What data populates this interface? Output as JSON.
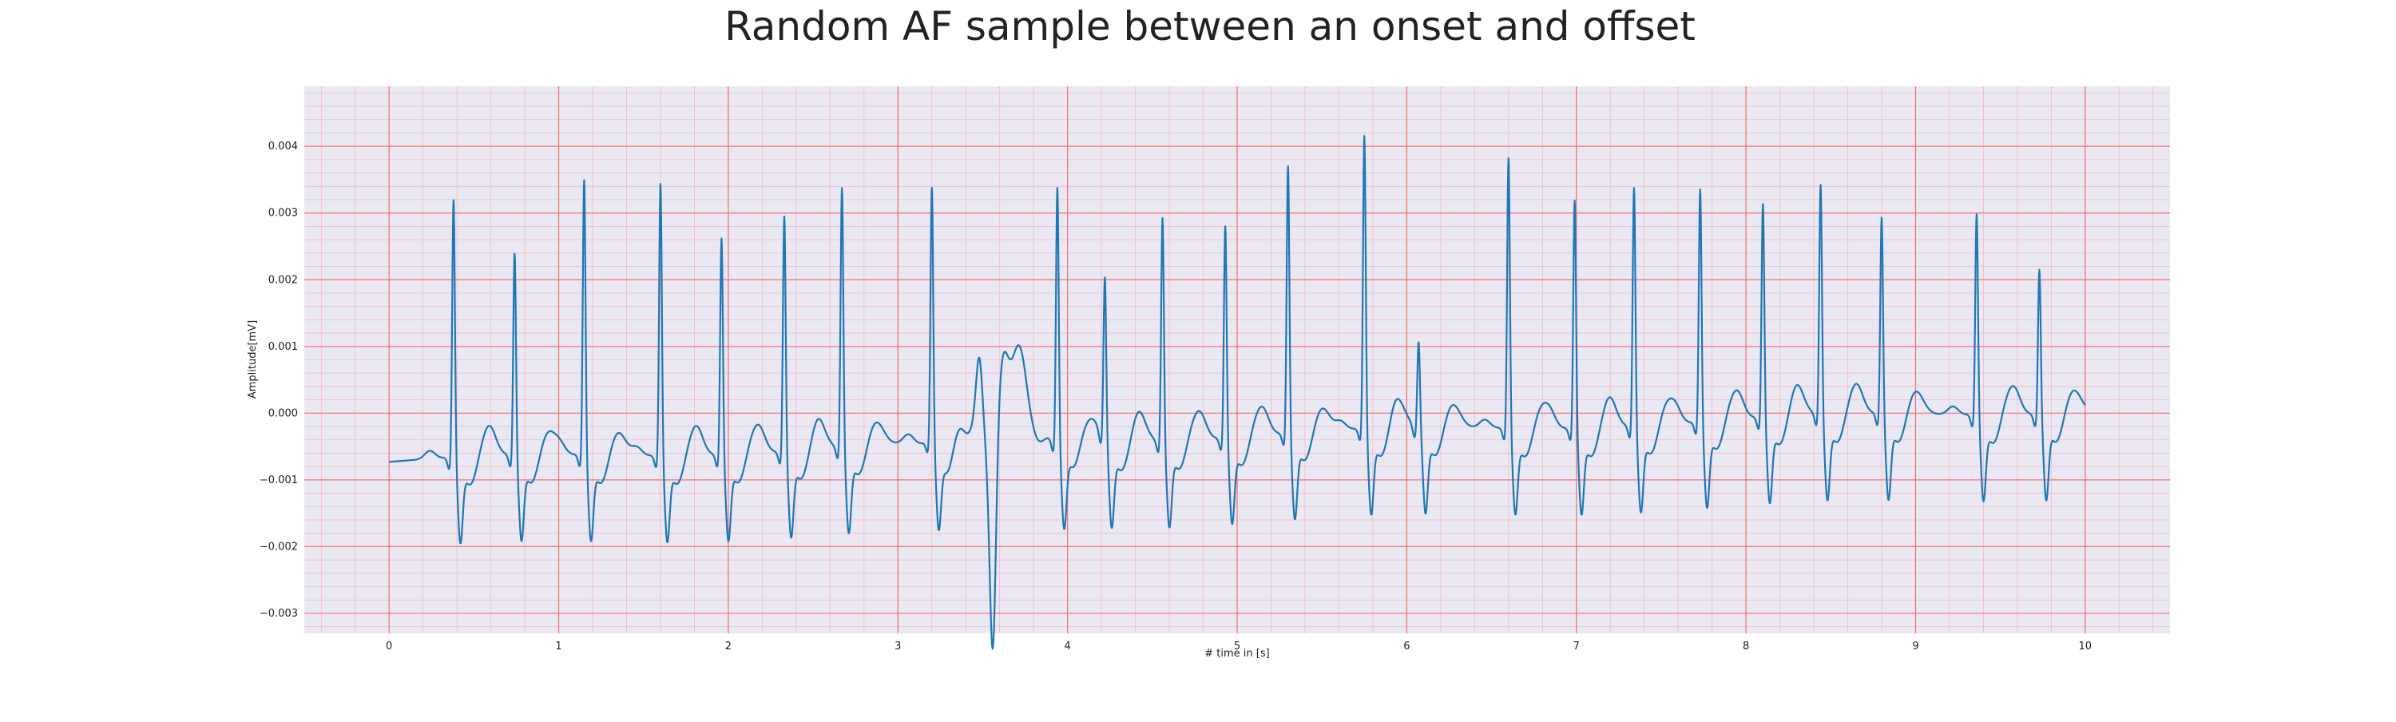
{
  "chart_data": {
    "type": "line",
    "title": "Random AF sample between an onset and offset",
    "xlabel": "# time in [s]",
    "ylabel": "Amplitude[mV]",
    "xlim": [
      -0.5,
      10.5
    ],
    "ylim": [
      -0.0033,
      0.0049
    ],
    "xticks": [
      0,
      1,
      2,
      3,
      4,
      5,
      6,
      7,
      8,
      9,
      10
    ],
    "yticks": [
      -0.003,
      -0.002,
      -0.001,
      0.0,
      0.001,
      0.002,
      0.003,
      0.004
    ],
    "xtick_labels": [
      "0",
      "1",
      "2",
      "3",
      "4",
      "5",
      "6",
      "7",
      "8",
      "9",
      "10"
    ],
    "ytick_labels": [
      "−0.003",
      "−0.002",
      "−0.001",
      "0.000",
      "0.001",
      "0.002",
      "0.003",
      "0.004"
    ],
    "grid": true,
    "background_color": "#eae8f2",
    "major_grid_color": "#f07070",
    "minor_grid_color": "#f3b9c4",
    "line_color": "#1f77b4",
    "start_value": -0.00073,
    "end_value": 0.00012,
    "series": [
      {
        "name": "",
        "beats": [
          {
            "t": 0.38,
            "r": 0.00402
          },
          {
            "t": 0.74,
            "r": 0.00318
          },
          {
            "t": 1.15,
            "r": 0.00428
          },
          {
            "t": 1.6,
            "r": 0.00424
          },
          {
            "t": 1.96,
            "r": 0.00341
          },
          {
            "t": 2.33,
            "r": 0.00369
          },
          {
            "t": 2.67,
            "r": 0.00405
          },
          {
            "t": 3.2,
            "r": 0.00393
          },
          {
            "t": 3.94,
            "r": 0.00398
          },
          {
            "t": 4.22,
            "r": 0.00256
          },
          {
            "t": 4.56,
            "r": 0.00351
          },
          {
            "t": 4.93,
            "r": 0.00334
          },
          {
            "t": 5.3,
            "r": 0.00417
          },
          {
            "t": 5.75,
            "r": 0.00455
          },
          {
            "t": 6.07,
            "r": 0.00143
          },
          {
            "t": 6.6,
            "r": 0.00421
          },
          {
            "t": 6.99,
            "r": 0.00358
          },
          {
            "t": 7.34,
            "r": 0.00374
          },
          {
            "t": 7.73,
            "r": 0.00365
          },
          {
            "t": 8.1,
            "r": 0.00336
          },
          {
            "t": 8.44,
            "r": 0.0036
          },
          {
            "t": 8.8,
            "r": 0.0031
          },
          {
            "t": 9.36,
            "r": 0.00317
          },
          {
            "t": 9.73,
            "r": 0.00233
          }
        ],
        "artifact": {
          "t": 3.56,
          "min": -0.00298,
          "max": 0.00175,
          "max_t": 3.7
        }
      }
    ]
  }
}
